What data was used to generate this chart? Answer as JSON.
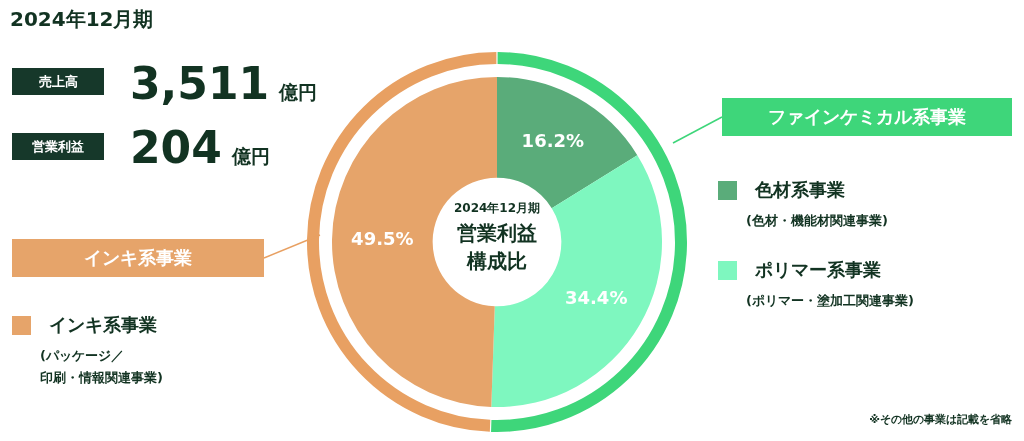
{
  "chart_data": {
    "type": "donut",
    "title": "2024年12月期",
    "categories": [
      "色材系事業",
      "ポリマー系事業",
      "インキ系事業"
    ],
    "values": [
      16.2,
      34.4,
      49.5
    ],
    "colors": [
      "#5aac7a",
      "#7ef7bf",
      "#e6a46a"
    ],
    "value_labels": [
      "16.2%",
      "34.4%",
      "49.5%"
    ],
    "legend": "left",
    "annotations": [
      "売上高",
      "3,511",
      "億円",
      "営業利益",
      "204",
      "億円",
      "2024年12月期",
      "営業利益",
      "構成比",
      "ファインケミカル系事業",
      "インキ系事業",
      "(色材・機能材関連事業)",
      "(ポリマー・塗加工関連事業)",
      "(パッケージ／",
      "印刷・情報関連事業)",
      "※その他の事業は記載を省略"
    ]
  }
}
